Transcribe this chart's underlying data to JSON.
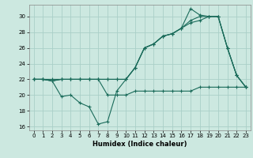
{
  "title": "",
  "xlabel": "Humidex (Indice chaleur)",
  "background_color": "#cce8e0",
  "grid_color": "#aacfc8",
  "line_color": "#1a6b5a",
  "xlim": [
    -0.5,
    23.5
  ],
  "ylim": [
    15.5,
    31.5
  ],
  "xticks": [
    0,
    1,
    2,
    3,
    4,
    5,
    6,
    7,
    8,
    9,
    10,
    11,
    12,
    13,
    14,
    15,
    16,
    17,
    18,
    19,
    20,
    21,
    22,
    23
  ],
  "yticks": [
    16,
    18,
    20,
    22,
    24,
    26,
    28,
    30
  ],
  "series1_x": [
    0,
    1,
    2,
    3,
    4,
    5,
    6,
    7,
    8,
    9,
    10,
    11,
    12,
    13,
    14,
    15,
    16,
    17,
    18,
    19,
    20,
    21,
    22,
    23
  ],
  "series1_y": [
    22,
    22,
    22,
    22,
    22,
    22,
    22,
    22,
    20,
    20,
    20,
    20.5,
    20.5,
    20.5,
    20.5,
    20.5,
    20.5,
    20.5,
    21,
    21,
    21,
    21,
    21,
    21
  ],
  "series2_x": [
    0,
    1,
    2,
    3,
    4,
    5,
    6,
    7,
    8,
    9,
    10,
    11,
    12,
    13,
    14,
    15,
    16,
    17,
    18,
    19,
    20,
    21,
    22,
    23
  ],
  "series2_y": [
    22,
    22,
    21.8,
    19.8,
    20,
    19.0,
    18.5,
    16.3,
    16.6,
    20.5,
    22,
    23.5,
    26,
    26.5,
    27.5,
    27.8,
    28.5,
    31.0,
    30.2,
    30,
    30,
    26,
    22.5,
    21
  ],
  "series3_x": [
    0,
    1,
    2,
    3,
    4,
    5,
    6,
    7,
    8,
    9,
    10,
    11,
    12,
    13,
    14,
    15,
    16,
    17,
    18,
    19,
    20,
    21,
    22,
    23
  ],
  "series3_y": [
    22,
    22,
    21.8,
    22,
    22,
    22,
    22,
    22,
    22,
    22,
    22,
    23.5,
    26,
    26.5,
    27.5,
    27.8,
    28.5,
    29.5,
    30.0,
    30,
    30.0,
    26,
    22.5,
    21
  ],
  "series4_x": [
    0,
    1,
    2,
    3,
    4,
    5,
    6,
    7,
    8,
    9,
    10,
    11,
    12,
    13,
    14,
    15,
    16,
    17,
    18,
    19,
    20,
    21,
    22,
    23
  ],
  "series4_y": [
    22,
    22,
    21.8,
    22,
    22,
    22,
    22,
    22,
    22,
    22,
    22,
    23.5,
    26,
    26.5,
    27.5,
    27.8,
    28.5,
    29.2,
    29.5,
    30.0,
    30.0,
    26,
    22.5,
    21
  ]
}
